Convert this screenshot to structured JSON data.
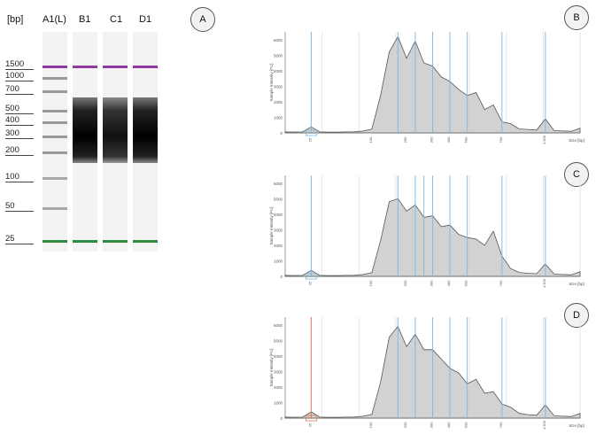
{
  "gel": {
    "unit_label": "[bp]",
    "ladder": [
      "1500",
      "1000",
      "700",
      "500",
      "400",
      "300",
      "200",
      "100",
      "50",
      "25"
    ],
    "lanes": [
      "A1(L)",
      "B1",
      "C1",
      "D1"
    ],
    "panel_label": "A",
    "colors": {
      "upper_marker": "#8e3aa0",
      "lower_marker": "#2e8b3e",
      "band": "#111111"
    }
  },
  "panels": [
    {
      "label": "B",
      "marker_color": "#7fb6dc"
    },
    {
      "label": "C",
      "marker_color": "#7fb6dc"
    },
    {
      "label": "D",
      "marker_color": "#e8775a"
    }
  ],
  "chart_data": {
    "type": "area",
    "title": "",
    "xlabel": "Size [bp]",
    "ylabel": "Sample Intensity [FU]",
    "y_ticks": [
      0,
      1000,
      2000,
      3000,
      4000,
      5000,
      6000
    ],
    "x_ticks": [
      "25",
      "100",
      "200",
      "300",
      "400",
      "500",
      "700",
      "1,500"
    ],
    "series": [
      {
        "values": [
          60,
          55,
          60,
          380,
          60,
          50,
          50,
          60,
          70,
          120,
          240,
          2400,
          5200,
          6200,
          4800,
          5900,
          4500,
          4300,
          3600,
          3300,
          2800,
          2400,
          2600,
          1500,
          1800,
          700,
          600,
          250,
          220,
          180,
          900,
          150,
          120,
          100,
          300
        ]
      },
      {
        "values": [
          60,
          55,
          60,
          380,
          60,
          50,
          50,
          60,
          70,
          120,
          240,
          2300,
          4800,
          5000,
          4200,
          4600,
          3800,
          3900,
          3200,
          3300,
          2700,
          2500,
          2400,
          2000,
          2900,
          1300,
          500,
          250,
          200,
          170,
          800,
          150,
          120,
          100,
          300
        ]
      },
      {
        "values": [
          60,
          55,
          60,
          400,
          60,
          50,
          50,
          60,
          70,
          120,
          240,
          2300,
          5200,
          5900,
          4600,
          5400,
          4400,
          4400,
          3800,
          3200,
          2900,
          2200,
          2500,
          1600,
          1700,
          900,
          700,
          300,
          220,
          180,
          850,
          150,
          120,
          100,
          300
        ]
      }
    ]
  }
}
